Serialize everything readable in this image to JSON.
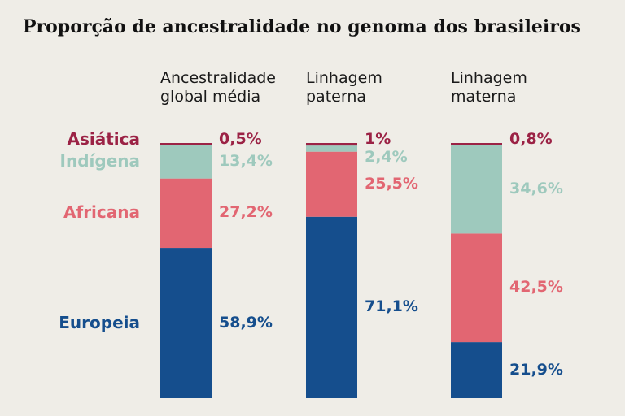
{
  "title": "Proporção de ancestralidade no genoma dos brasileiros",
  "colors": {
    "asiatica": "#9b2245",
    "indigena": "#9ec9bd",
    "africana": "#e26672",
    "europeia": "#154e8d"
  },
  "chart_data": {
    "type": "bar",
    "stacked": true,
    "categories": [
      [
        "Ancestralidade",
        "global média"
      ],
      [
        "Linhagem",
        "paterna"
      ],
      [
        "Linhagem",
        "materna"
      ]
    ],
    "series": [
      {
        "name": "Europeia",
        "key": "europeia",
        "values": [
          58.9,
          71.1,
          21.9
        ],
        "labels": [
          "58,9%",
          "71,1%",
          "21,9%"
        ]
      },
      {
        "name": "Africana",
        "key": "africana",
        "values": [
          27.2,
          25.5,
          42.5
        ],
        "labels": [
          "27,2%",
          "25,5%",
          "42,5%"
        ]
      },
      {
        "name": "Indígena",
        "key": "indigena",
        "values": [
          13.4,
          2.4,
          34.6
        ],
        "labels": [
          "13,4%",
          "2,4%",
          "34,6%"
        ]
      },
      {
        "name": "Asiática",
        "key": "asiatica",
        "values": [
          0.5,
          1.0,
          0.8
        ],
        "labels": [
          "0,5%",
          "1%",
          "0,8%"
        ]
      }
    ]
  }
}
